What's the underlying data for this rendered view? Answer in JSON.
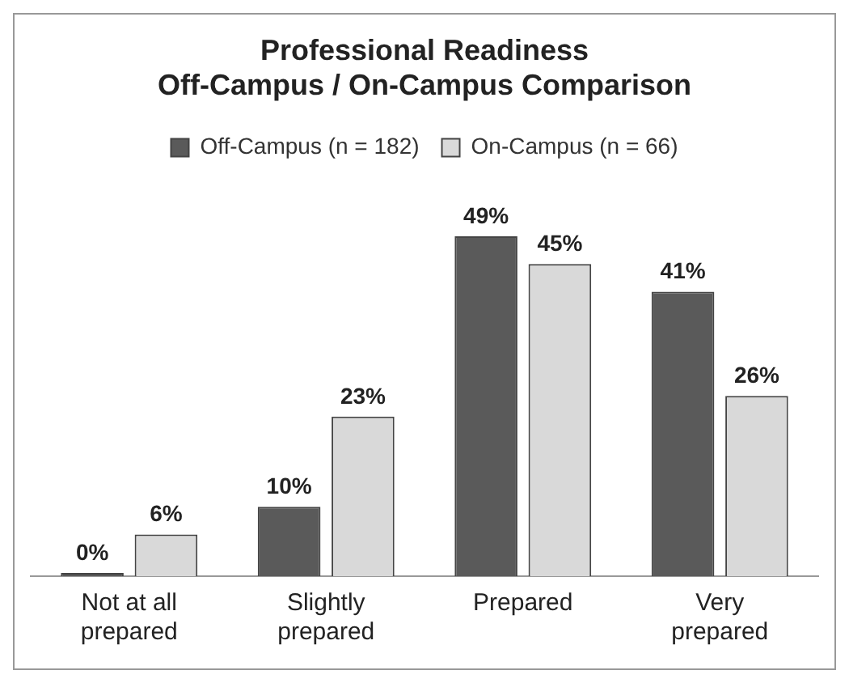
{
  "chart_data": {
    "type": "bar",
    "title": "Professional Readiness\nOff-Campus / On-Campus Comparison",
    "categories": [
      "Not at all prepared",
      "Slightly prepared",
      "Prepared",
      "Very prepared"
    ],
    "series": [
      {
        "name": "Off-Campus (n = 182)",
        "color": "#5a5a5a",
        "values": [
          0,
          10,
          49,
          41
        ],
        "value_labels": [
          "0%",
          "10%",
          "49%",
          "41%"
        ]
      },
      {
        "name": "On-Campus (n = 66)",
        "color": "#d9d9d9",
        "values": [
          6,
          23,
          45,
          26
        ],
        "value_labels": [
          "6%",
          "23%",
          "45%",
          "26%"
        ]
      }
    ],
    "legend": "top",
    "grid": false
  }
}
